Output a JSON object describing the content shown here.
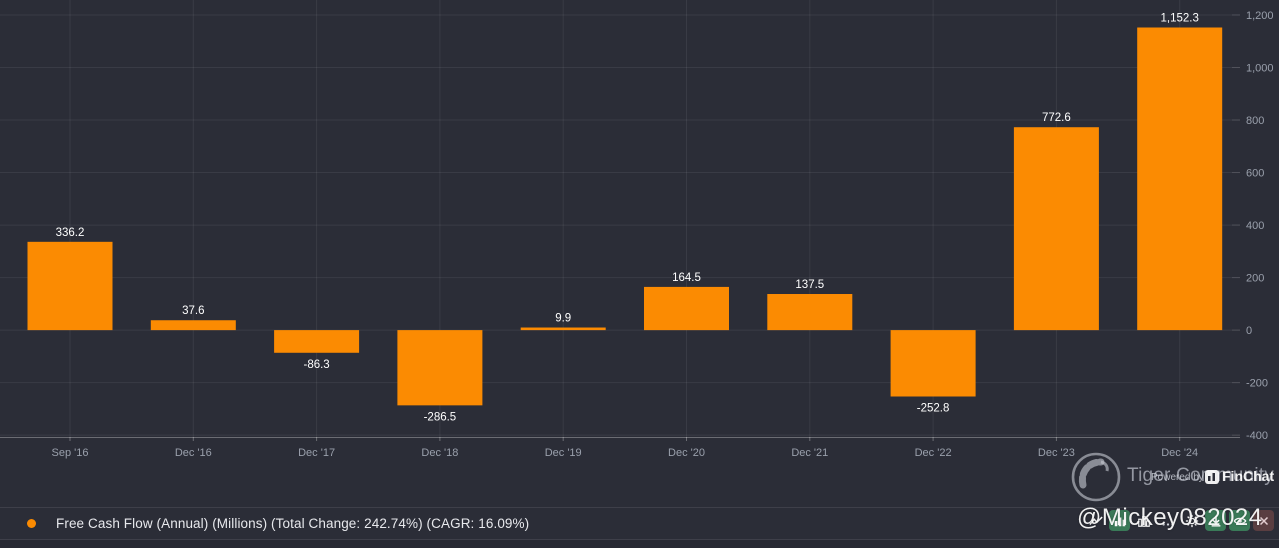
{
  "colors": {
    "background": "#2b2d37",
    "bar": "#fb8b02",
    "grid": "rgba(255,255,255,0.07)",
    "axis_line": "rgba(255,255,255,0.30)",
    "tick": "rgba(255,255,255,0.18)",
    "axis_label": "#9aa0ac",
    "value_label": "#ffffff",
    "legend_dot": "#fb8b02"
  },
  "chart_data": {
    "type": "bar",
    "title": "",
    "series_name": "Free Cash Flow (Annual) (Millions)",
    "categories": [
      "Sep '16",
      "Dec '16",
      "Dec '17",
      "Dec '18",
      "Dec '19",
      "Dec '20",
      "Dec '21",
      "Dec '22",
      "Dec '23",
      "Dec '24"
    ],
    "values": [
      336.2,
      37.6,
      -86.3,
      -286.5,
      9.9,
      164.5,
      137.5,
      -252.8,
      772.6,
      1152.3
    ],
    "value_labels": [
      "336.2",
      "37.6",
      "-86.3",
      "-286.5",
      "9.9",
      "164.5",
      "137.5",
      "-252.8",
      "772.6",
      "1,152.3"
    ],
    "y_ticks": [
      {
        "v": 1200,
        "label": "1,200"
      },
      {
        "v": 1000,
        "label": "1,000"
      },
      {
        "v": 800,
        "label": "800"
      },
      {
        "v": 600,
        "label": "600"
      },
      {
        "v": 400,
        "label": "400"
      },
      {
        "v": 200,
        "label": "200"
      },
      {
        "v": 0,
        "label": "0"
      },
      {
        "v": -200,
        "label": "-200"
      },
      {
        "v": -400,
        "label": "-400"
      }
    ],
    "ylim": [
      -407,
      1257
    ],
    "grid": true,
    "y_axis_position": "right",
    "legend_position": "bottom"
  },
  "legend": {
    "label": "Free Cash Flow (Annual) (Millions) (Total Change: 242.74%) (CAGR: 16.09%)"
  },
  "watermarks": {
    "community": "Tiger Community",
    "powered_by": "Powered by",
    "finchat": "FinChat",
    "username": "@Mickey082024"
  },
  "toolbar": {
    "icons": [
      {
        "name": "trend-line-icon",
        "glyph": "trend-line",
        "style": "plain"
      },
      {
        "name": "bar-chart-button",
        "glyph": "bar-chart",
        "style": "green"
      },
      {
        "name": "column-chart-icon",
        "glyph": "columns",
        "style": "plain"
      },
      {
        "name": "more-options-icon",
        "glyph": "ellipsis",
        "style": "plain"
      },
      {
        "name": "settings-gear-button",
        "glyph": "gear",
        "style": "plain"
      },
      {
        "name": "download-button",
        "glyph": "download",
        "style": "green"
      },
      {
        "name": "visibility-eye-button",
        "glyph": "eye",
        "style": "green"
      },
      {
        "name": "close-button",
        "glyph": "close",
        "style": "red"
      }
    ]
  }
}
